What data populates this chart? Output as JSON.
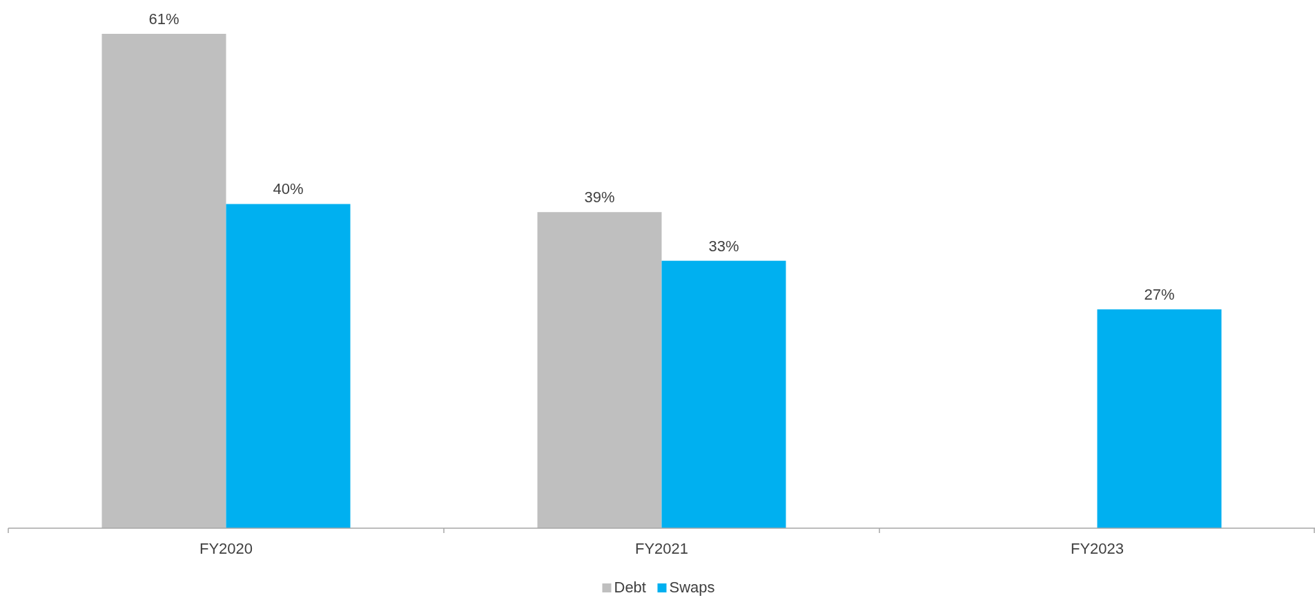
{
  "chart_data": {
    "type": "bar",
    "categories": [
      "FY2020",
      "FY2021",
      "FY2023"
    ],
    "series": [
      {
        "name": "Debt",
        "color": "#bfbfbf",
        "values": [
          61,
          39,
          null
        ],
        "value_labels": [
          "61%",
          "39%",
          null
        ]
      },
      {
        "name": "Swaps",
        "color": "#00b0f0",
        "values": [
          40,
          33,
          27
        ],
        "value_labels": [
          "40%",
          "33%",
          "27%"
        ]
      }
    ],
    "legend": "bottom"
  }
}
